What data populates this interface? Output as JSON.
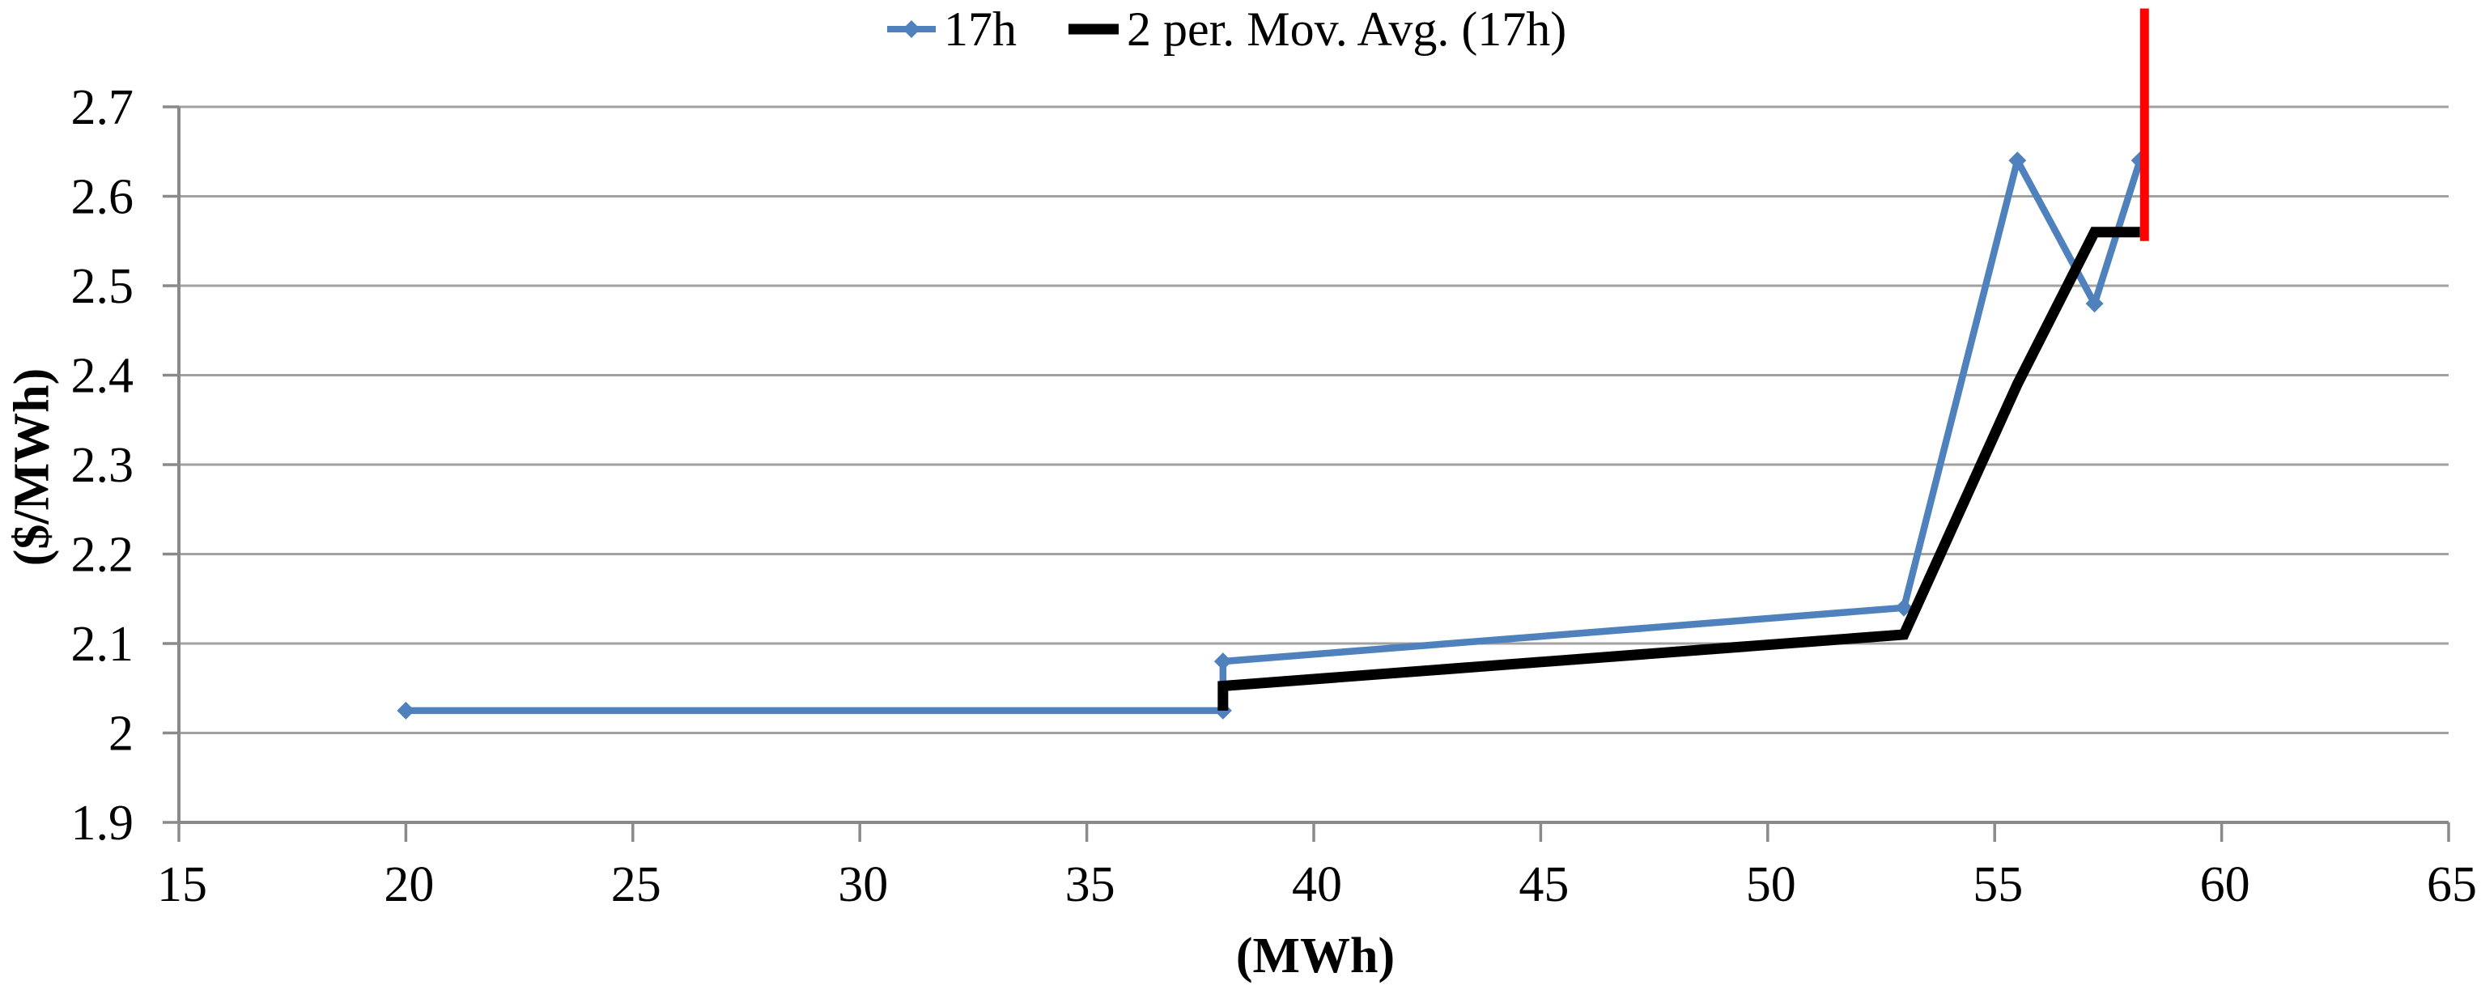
{
  "chart_data": {
    "type": "line",
    "title": "",
    "xlabel": "(MWh)",
    "ylabel": "($/MWh)",
    "xlim": [
      15,
      65
    ],
    "ylim": [
      1.9,
      2.7
    ],
    "x_ticks": [
      15,
      20,
      25,
      30,
      35,
      40,
      45,
      50,
      55,
      60,
      65
    ],
    "x_tick_labels": [
      "15",
      "20",
      "25",
      "30",
      "35",
      "40",
      "45",
      "50",
      "55",
      "60",
      "65"
    ],
    "y_ticks": [
      1.9,
      2.0,
      2.1,
      2.2,
      2.3,
      2.4,
      2.5,
      2.6,
      2.7
    ],
    "y_tick_labels": [
      "1.9",
      "2",
      "2.1",
      "2.2",
      "2.3",
      "2.4",
      "2.5",
      "2.6",
      "2.7"
    ],
    "grid": "horizontal-only",
    "legend_position": "top-center",
    "series": [
      {
        "name": "17h",
        "color": "#4F81BD",
        "marker": "diamond",
        "points": [
          [
            20,
            2.025
          ],
          [
            38,
            2.025
          ],
          [
            38,
            2.08
          ],
          [
            53,
            2.14
          ],
          [
            55.5,
            2.64
          ],
          [
            57.2,
            2.48
          ],
          [
            58.2,
            2.64
          ]
        ]
      },
      {
        "name": "2 per. Mov. Avg. (17h)",
        "color": "#000000",
        "marker": "none",
        "points": [
          [
            38,
            2.025
          ],
          [
            38,
            2.0525
          ],
          [
            53,
            2.11
          ],
          [
            55.5,
            2.39
          ],
          [
            57.2,
            2.56
          ],
          [
            58.2,
            2.56
          ]
        ]
      }
    ],
    "annotations": [
      {
        "name": "red-vertical-line",
        "color": "#FF0000",
        "points": [
          [
            58.3,
            2.55
          ],
          [
            58.3,
            2.81
          ]
        ]
      }
    ],
    "colors": {
      "gridline": "#A1A1A1",
      "axis": "#8A8A8A",
      "text": "#000000",
      "background": "#FFFFFF"
    }
  },
  "legend": {
    "items": [
      {
        "label": "17h"
      },
      {
        "label": "2 per. Mov. Avg. (17h)"
      }
    ]
  }
}
